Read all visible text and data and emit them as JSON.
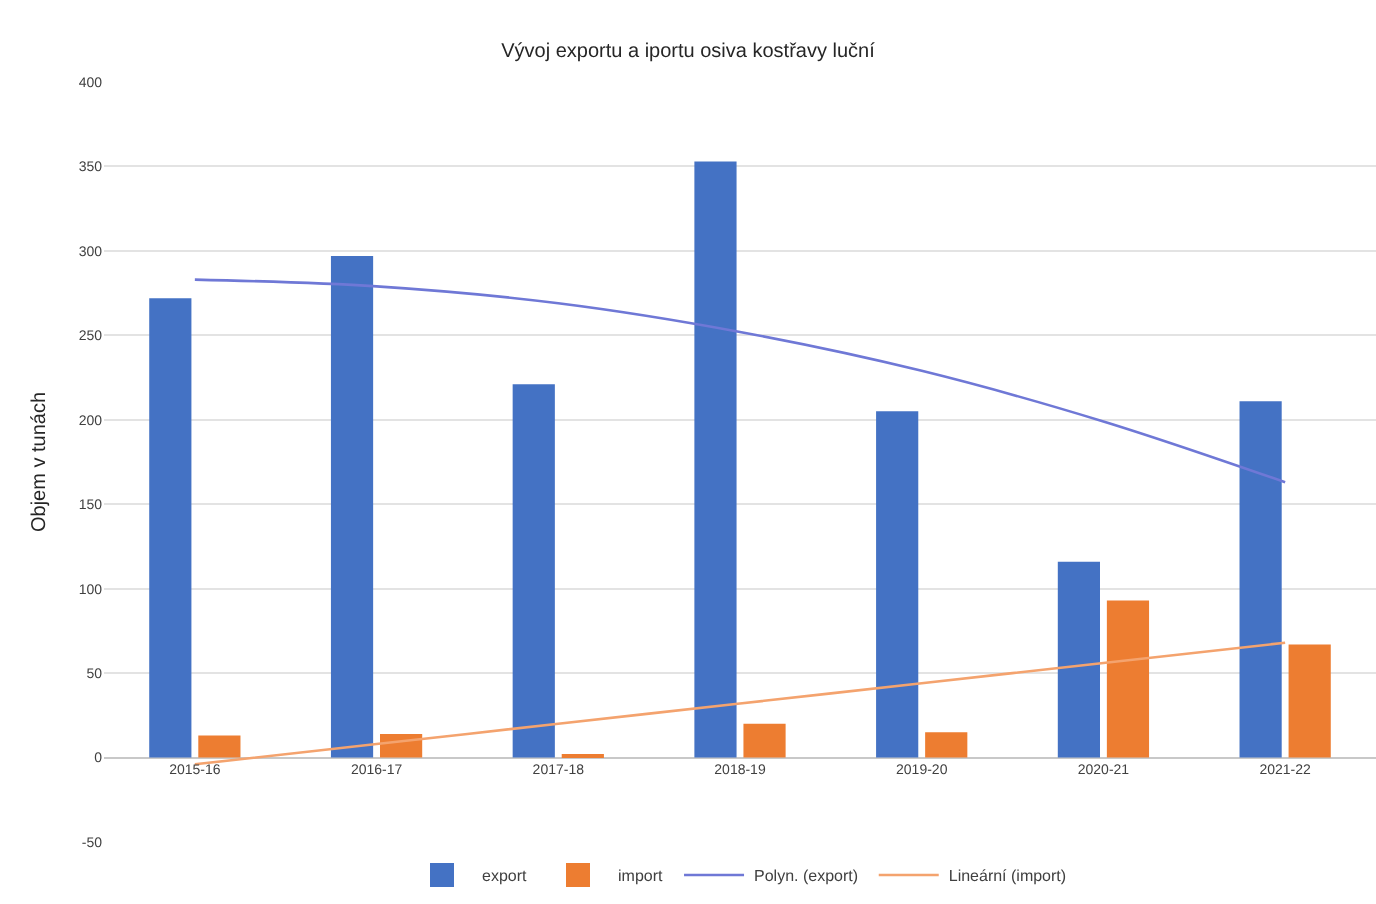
{
  "chart_data": {
    "type": "bar",
    "title": "Vývoj exportu a iportu osiva kostřavy luční",
    "ylabel": "Objem v tunách",
    "categories": [
      "2015-16",
      "2016-17",
      "2017-18",
      "2018-19",
      "2019-20",
      "2020-21",
      "2021-22"
    ],
    "series": [
      {
        "name": "export",
        "color": "#4472c4",
        "values": [
          272,
          297,
          221,
          353,
          205,
          116,
          211
        ]
      },
      {
        "name": "import",
        "color": "#ed7d31",
        "values": [
          13,
          14,
          1,
          20,
          15,
          93,
          67
        ]
      },
      {
        "name": "Polyn. (export)",
        "type": "line",
        "color": "#6f78d6",
        "values": [
          283,
          279,
          269,
          252,
          229,
          199,
          163
        ]
      },
      {
        "name": "Lineární (import)",
        "type": "line",
        "color": "#f4a36e",
        "values": [
          -4,
          8,
          20,
          32,
          44,
          56,
          68
        ]
      }
    ],
    "ylim": [
      -50,
      400
    ],
    "yticks": [
      -50,
      0,
      50,
      100,
      150,
      200,
      250,
      300,
      350,
      400
    ],
    "grid": "y",
    "legend": "bottom"
  }
}
